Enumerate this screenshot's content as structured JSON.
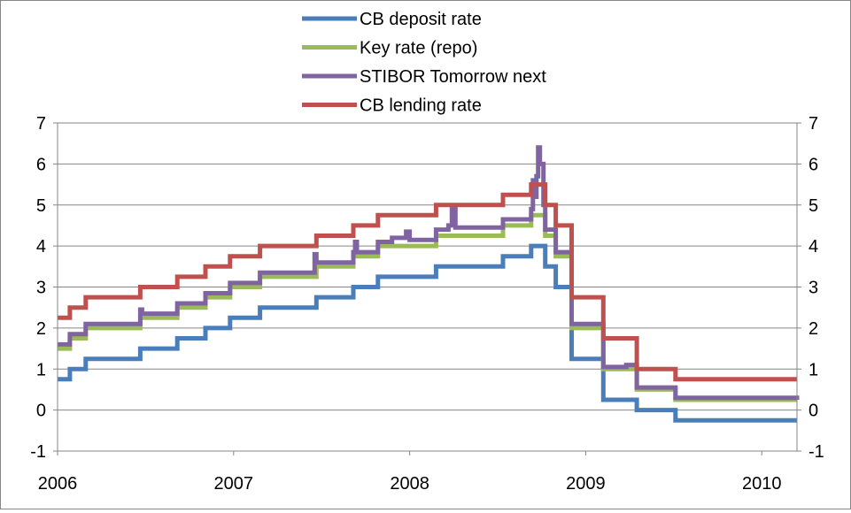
{
  "chart_data": {
    "type": "line",
    "title": "",
    "xlabel": "",
    "ylabel": "",
    "xlim": [
      2006.0,
      2010.2
    ],
    "ylim": [
      -1,
      7
    ],
    "x_ticks": [
      2006,
      2007,
      2008,
      2009,
      2010
    ],
    "x_tick_labels": [
      "2006",
      "2007",
      "2008",
      "2009",
      "2010"
    ],
    "y_ticks": [
      -1,
      0,
      1,
      2,
      3,
      4,
      5,
      6,
      7
    ],
    "y_tick_labels": [
      "-1",
      "0",
      "1",
      "2",
      "3",
      "4",
      "5",
      "6",
      "7"
    ],
    "secondary_y_axis": true,
    "grid": "horizontal",
    "legend_position": "top",
    "step": true,
    "series": [
      {
        "name": "CB deposit rate",
        "color": "#4A7EBB",
        "points": [
          [
            2006.0,
            0.75
          ],
          [
            2006.07,
            1.0
          ],
          [
            2006.16,
            1.25
          ],
          [
            2006.47,
            1.5
          ],
          [
            2006.68,
            1.75
          ],
          [
            2006.84,
            2.0
          ],
          [
            2006.98,
            2.25
          ],
          [
            2007.15,
            2.5
          ],
          [
            2007.47,
            2.75
          ],
          [
            2007.68,
            3.0
          ],
          [
            2007.82,
            3.25
          ],
          [
            2008.15,
            3.5
          ],
          [
            2008.53,
            3.75
          ],
          [
            2008.69,
            4.0
          ],
          [
            2008.77,
            3.5
          ],
          [
            2008.83,
            3.0
          ],
          [
            2008.92,
            1.25
          ],
          [
            2009.1,
            0.25
          ],
          [
            2009.29,
            0.0
          ],
          [
            2009.51,
            -0.25
          ],
          [
            2010.2,
            -0.25
          ]
        ]
      },
      {
        "name": "Key rate (repo)",
        "color": "#9BBB59",
        "points": [
          [
            2006.0,
            1.5
          ],
          [
            2006.07,
            1.75
          ],
          [
            2006.16,
            2.0
          ],
          [
            2006.47,
            2.25
          ],
          [
            2006.68,
            2.5
          ],
          [
            2006.84,
            2.75
          ],
          [
            2006.98,
            3.0
          ],
          [
            2007.15,
            3.25
          ],
          [
            2007.47,
            3.5
          ],
          [
            2007.68,
            3.75
          ],
          [
            2007.82,
            4.0
          ],
          [
            2008.15,
            4.25
          ],
          [
            2008.53,
            4.5
          ],
          [
            2008.69,
            4.75
          ],
          [
            2008.77,
            4.25
          ],
          [
            2008.83,
            3.75
          ],
          [
            2008.92,
            2.0
          ],
          [
            2009.1,
            1.0
          ],
          [
            2009.29,
            0.5
          ],
          [
            2009.51,
            0.25
          ],
          [
            2010.2,
            0.25
          ]
        ]
      },
      {
        "name": "STIBOR Tomorrow next",
        "color": "#8064A2",
        "points": [
          [
            2006.0,
            1.6
          ],
          [
            2006.07,
            1.85
          ],
          [
            2006.16,
            2.1
          ],
          [
            2006.46,
            2.1
          ],
          [
            2006.47,
            2.45
          ],
          [
            2006.48,
            2.35
          ],
          [
            2006.68,
            2.6
          ],
          [
            2006.84,
            2.85
          ],
          [
            2006.98,
            3.1
          ],
          [
            2007.15,
            3.35
          ],
          [
            2007.44,
            3.35
          ],
          [
            2007.46,
            3.8
          ],
          [
            2007.47,
            3.6
          ],
          [
            2007.68,
            3.85
          ],
          [
            2007.69,
            4.1
          ],
          [
            2007.7,
            3.85
          ],
          [
            2007.82,
            4.1
          ],
          [
            2007.9,
            4.2
          ],
          [
            2007.98,
            4.35
          ],
          [
            2008.0,
            4.15
          ],
          [
            2008.15,
            4.4
          ],
          [
            2008.22,
            4.5
          ],
          [
            2008.24,
            4.9
          ],
          [
            2008.26,
            4.45
          ],
          [
            2008.53,
            4.65
          ],
          [
            2008.69,
            4.9
          ],
          [
            2008.7,
            5.6
          ],
          [
            2008.71,
            5.2
          ],
          [
            2008.72,
            5.7
          ],
          [
            2008.73,
            6.4
          ],
          [
            2008.74,
            6.0
          ],
          [
            2008.76,
            5.0
          ],
          [
            2008.77,
            4.4
          ],
          [
            2008.83,
            3.85
          ],
          [
            2008.92,
            2.1
          ],
          [
            2009.1,
            1.05
          ],
          [
            2009.23,
            1.1
          ],
          [
            2009.29,
            0.55
          ],
          [
            2009.51,
            0.3
          ],
          [
            2010.2,
            0.25
          ]
        ]
      },
      {
        "name": "CB lending rate",
        "color": "#C0504D",
        "points": [
          [
            2006.0,
            2.25
          ],
          [
            2006.07,
            2.5
          ],
          [
            2006.16,
            2.75
          ],
          [
            2006.47,
            3.0
          ],
          [
            2006.68,
            3.25
          ],
          [
            2006.84,
            3.5
          ],
          [
            2006.98,
            3.75
          ],
          [
            2007.15,
            4.0
          ],
          [
            2007.47,
            4.25
          ],
          [
            2007.68,
            4.5
          ],
          [
            2007.82,
            4.75
          ],
          [
            2008.15,
            5.0
          ],
          [
            2008.53,
            5.25
          ],
          [
            2008.69,
            5.5
          ],
          [
            2008.77,
            5.0
          ],
          [
            2008.83,
            4.5
          ],
          [
            2008.92,
            2.75
          ],
          [
            2009.1,
            1.75
          ],
          [
            2009.29,
            1.0
          ],
          [
            2009.51,
            0.75
          ],
          [
            2010.2,
            0.75
          ]
        ]
      }
    ]
  }
}
